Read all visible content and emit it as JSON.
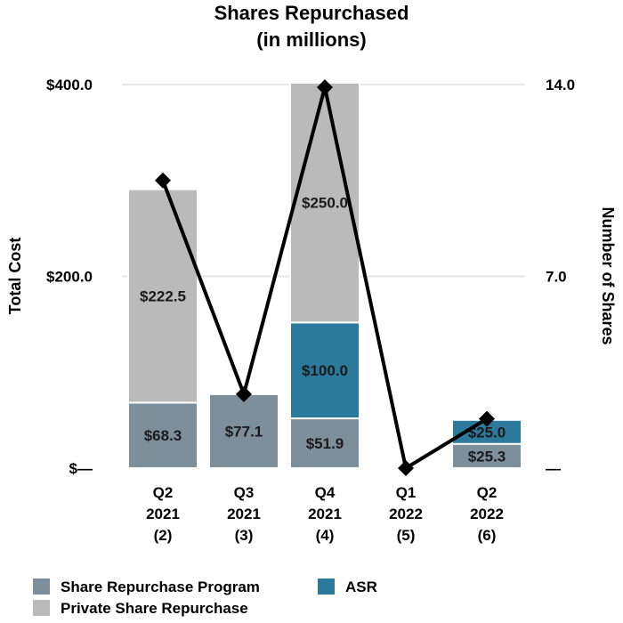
{
  "chart_data": {
    "type": "bar",
    "stacked": true,
    "title": "Shares Repurchased",
    "subtitle": "(in millions)",
    "ylabel": "Total Cost",
    "y2label": "Number of Shares",
    "ylim": [
      0,
      400
    ],
    "y2lim": [
      0,
      14
    ],
    "yticks": [
      {
        "value": 0,
        "label": "$—"
      },
      {
        "value": 200,
        "label": "$200.0"
      },
      {
        "value": 400,
        "label": "$400.0"
      }
    ],
    "y2ticks": [
      {
        "value": 0,
        "label": "—"
      },
      {
        "value": 7,
        "label": "7.0"
      },
      {
        "value": 14,
        "label": "14.0"
      }
    ],
    "categories": [
      [
        "Q2",
        "2021",
        "(2)"
      ],
      [
        "Q3",
        "2021",
        "(3)"
      ],
      [
        "Q4",
        "2021",
        "(4)"
      ],
      [
        "Q1",
        "2022",
        "(5)"
      ],
      [
        "Q2",
        "2022",
        "(6)"
      ]
    ],
    "series": [
      {
        "name": "Share Repurchase Program",
        "color": "#7d8f9b",
        "values": [
          68.3,
          77.1,
          51.9,
          0,
          25.3
        ],
        "labels": [
          "$68.3",
          "$77.1",
          "$51.9",
          "",
          "$25.3"
        ]
      },
      {
        "name": "ASR",
        "color": "#2b7a9c",
        "values": [
          0,
          0,
          100.0,
          0,
          25.0
        ],
        "labels": [
          "",
          "",
          "$100.0",
          "",
          "$25.0"
        ]
      },
      {
        "name": "Private Share Repurchase",
        "color": "#bababa",
        "values": [
          222.5,
          0,
          250.0,
          0,
          0
        ],
        "labels": [
          "$222.5",
          "",
          "$250.0",
          "",
          ""
        ]
      }
    ],
    "line": {
      "name": "Number of Shares",
      "axis": "y2",
      "color": "#000000",
      "values": [
        10.5,
        2.7,
        13.9,
        0.0,
        1.8
      ]
    },
    "legend": {
      "position": "bottom",
      "rows": [
        [
          "Share Repurchase Program",
          "ASR"
        ],
        [
          "Private Share Repurchase"
        ]
      ]
    }
  }
}
